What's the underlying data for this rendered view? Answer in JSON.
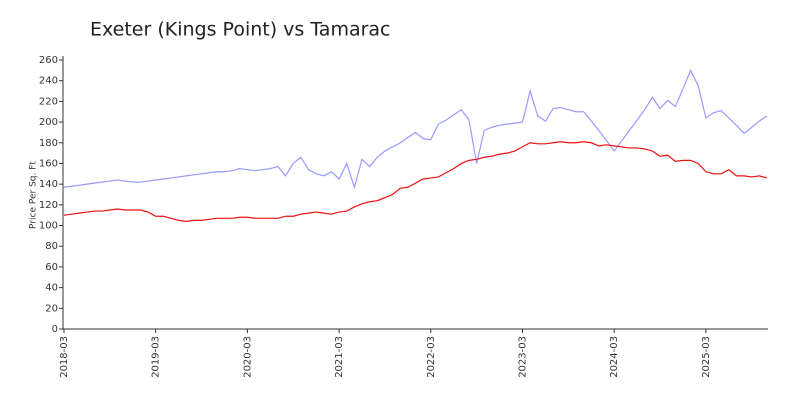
{
  "chart_data": {
    "type": "line",
    "title": "Exeter (Kings Point) vs Tamarac",
    "y_label": "Price Per Sq. Ft",
    "x": [
      "2018-03",
      "2018-04",
      "2018-05",
      "2018-06",
      "2018-07",
      "2018-08",
      "2018-09",
      "2018-10",
      "2018-11",
      "2018-12",
      "2019-01",
      "2019-02",
      "2019-03",
      "2019-04",
      "2019-05",
      "2019-06",
      "2019-07",
      "2019-08",
      "2019-09",
      "2019-10",
      "2019-11",
      "2019-12",
      "2020-01",
      "2020-02",
      "2020-03",
      "2020-04",
      "2020-05",
      "2020-06",
      "2020-07",
      "2020-08",
      "2020-09",
      "2020-10",
      "2020-11",
      "2020-12",
      "2021-01",
      "2021-02",
      "2021-03",
      "2021-04",
      "2021-05",
      "2021-06",
      "2021-07",
      "2021-08",
      "2021-09",
      "2021-10",
      "2021-11",
      "2021-12",
      "2022-01",
      "2022-02",
      "2022-03",
      "2022-04",
      "2022-05",
      "2022-06",
      "2022-07",
      "2022-08",
      "2022-09",
      "2022-10",
      "2022-11",
      "2022-12",
      "2023-01",
      "2023-02",
      "2023-03",
      "2023-04",
      "2023-05",
      "2023-06",
      "2023-07",
      "2023-08",
      "2023-09",
      "2023-10",
      "2023-11",
      "2023-12",
      "2024-01",
      "2024-02",
      "2024-03",
      "2024-04",
      "2024-05",
      "2024-06",
      "2024-07",
      "2024-08",
      "2024-09",
      "2024-10",
      "2024-11",
      "2024-12",
      "2025-01",
      "2025-02",
      "2025-03",
      "2025-04",
      "2025-05",
      "2025-06",
      "2025-07",
      "2025-08",
      "2025-09",
      "2025-10",
      "2025-11"
    ],
    "xticks": [
      "2018-03",
      "2019-03",
      "2020-03",
      "2021-03",
      "2022-03",
      "2023-03",
      "2024-03",
      "2025-03"
    ],
    "ylim": [
      0,
      260
    ],
    "yticks": [
      0,
      20,
      40,
      60,
      80,
      100,
      120,
      140,
      160,
      180,
      200,
      220,
      240,
      260
    ],
    "series": [
      {
        "color": "#9999ff",
        "values": [
          137,
          138,
          139,
          140,
          141,
          142,
          143,
          144,
          143,
          142,
          142,
          143,
          144,
          145,
          146,
          147,
          148,
          149,
          150,
          151,
          152,
          152,
          153,
          155,
          154,
          153,
          154,
          155,
          157,
          148,
          160,
          166,
          154,
          150,
          148,
          152,
          145,
          160,
          137,
          164,
          157,
          166,
          172,
          176,
          180,
          185,
          190,
          184,
          183,
          198,
          202,
          207,
          212,
          202,
          160,
          192,
          195,
          197,
          198,
          199,
          200,
          230,
          206,
          201,
          213,
          214,
          212,
          210,
          210,
          201,
          192,
          182,
          172,
          182,
          192,
          202,
          212,
          224,
          213,
          221,
          215,
          232,
          250,
          235,
          204,
          209,
          211,
          204,
          197,
          189,
          195,
          201,
          206
        ]
      },
      {
        "color": "#ee1111",
        "values": [
          110,
          111,
          112,
          113,
          114,
          114,
          115,
          116,
          115,
          115,
          115,
          113,
          109,
          109,
          107,
          105,
          104,
          105,
          105,
          106,
          107,
          107,
          107,
          108,
          108,
          107,
          107,
          107,
          107,
          109,
          109,
          111,
          112,
          113,
          112,
          111,
          113,
          114,
          118,
          121,
          123,
          124,
          127,
          130,
          136,
          137,
          141,
          145,
          146,
          147,
          151,
          155,
          160,
          163,
          164,
          166,
          167,
          169,
          170,
          172,
          176,
          180,
          179,
          179,
          180,
          181,
          180,
          180,
          181,
          180,
          177,
          178,
          177,
          176,
          175,
          175,
          174,
          172,
          167,
          168,
          162,
          163,
          163,
          160,
          152,
          150,
          150,
          154,
          148,
          148,
          147,
          148,
          146
        ]
      }
    ]
  }
}
